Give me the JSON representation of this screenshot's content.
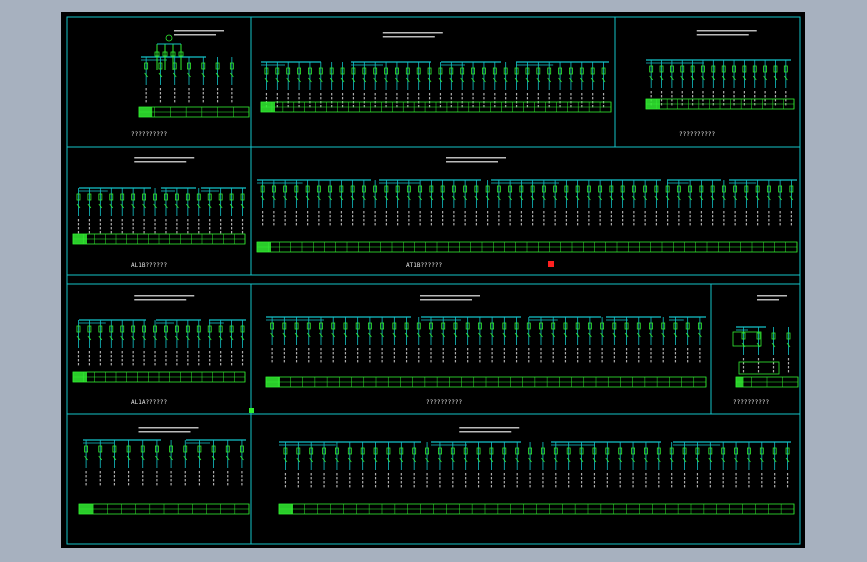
{
  "colors": {
    "background": "#a7b1bf",
    "sheet": "#000000",
    "frame": "#13c3c9",
    "device": "#31ee31",
    "text": "#e8e8e8",
    "marker": "#ff2020"
  },
  "panels": [
    {
      "name": "panel-top-left",
      "caption": "??????????",
      "busbars": 1,
      "feeders": 7,
      "table": true
    },
    {
      "name": "panel-top-center",
      "caption": "",
      "busbars": 4,
      "feeders": 32,
      "table": true
    },
    {
      "name": "panel-top-right",
      "caption": "??????????",
      "busbars": 1,
      "feeders": 14,
      "table": true
    },
    {
      "name": "panel-mid-left",
      "caption": "AL1B??????",
      "busbars": 3,
      "feeders": 16,
      "table": true
    },
    {
      "name": "panel-mid-center",
      "caption": "AT1B??????",
      "busbars": 5,
      "feeders": 48,
      "table": true
    },
    {
      "name": "panel-lower-left",
      "caption": "AL1A??????",
      "busbars": 3,
      "feeders": 16,
      "table": true
    },
    {
      "name": "panel-lower-center",
      "caption": "??????????",
      "busbars": 5,
      "feeders": 36,
      "table": true
    },
    {
      "name": "panel-lower-right",
      "caption": "??????????",
      "busbars": 1,
      "feeders": 4,
      "table": true
    },
    {
      "name": "panel-bottom-left",
      "caption": "",
      "busbars": 2,
      "feeders": 12,
      "table": true
    },
    {
      "name": "panel-bottom-center",
      "caption": "",
      "busbars": 4,
      "feeders": 40,
      "table": true
    }
  ]
}
